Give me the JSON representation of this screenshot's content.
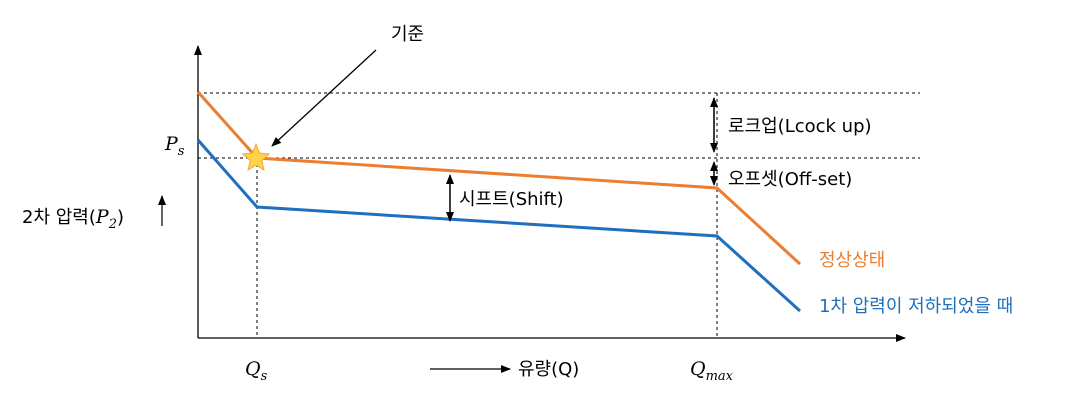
{
  "labels": {
    "reference": "기준",
    "lockup": "로크업(Lcock up)",
    "offset": "오프셋(Off-set)",
    "shift": "시프트(Shift)",
    "normal": "정상상태",
    "reduced": "1차 압력이 저하되었을 때",
    "yaxis_prefix": "2차 압력(",
    "yaxis_var": "P",
    "yaxis_sub": "2",
    "yaxis_suffix": ")",
    "ps_main": "P",
    "ps_sub": "s",
    "qs_main": "Q",
    "qs_sub": "s",
    "qmax_main": "Q",
    "qmax_sub": "max",
    "xaxis": "유량(Q)"
  },
  "colors": {
    "normal_line": "#ED7D31",
    "reduced_line": "#1F6FBF",
    "star": "#FFD24A"
  }
}
